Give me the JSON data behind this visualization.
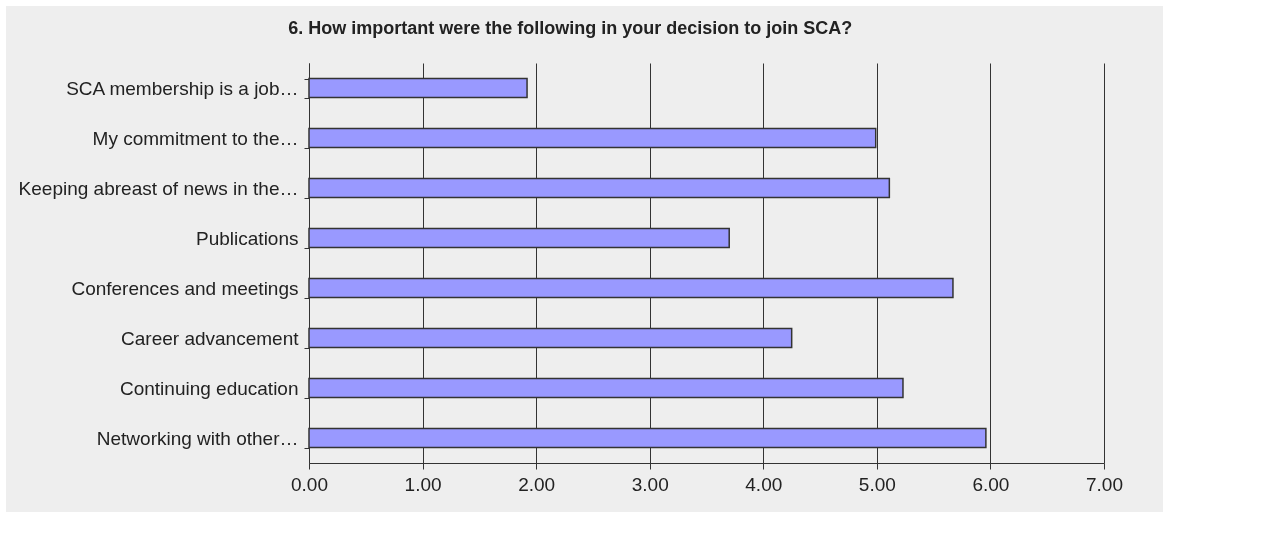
{
  "chart_data": {
    "type": "bar",
    "orientation": "horizontal",
    "title": "6. How important were the following in your decision to join SCA?",
    "categories": [
      "SCA membership is a job…",
      "My commitment to the…",
      "Keeping abreast of news in the…",
      "Publications",
      "Conferences and meetings",
      "Career advancement",
      "Continuing education",
      "Networking with other…"
    ],
    "values": [
      1.92,
      4.99,
      5.11,
      3.7,
      5.67,
      4.25,
      5.23,
      5.96
    ],
    "color": "#9999ff",
    "xlim": [
      0,
      7
    ],
    "xticks": [
      {
        "value": 0,
        "label": "0.00"
      },
      {
        "value": 1,
        "label": "1.00"
      },
      {
        "value": 2,
        "label": "2.00"
      },
      {
        "value": 3,
        "label": "3.00"
      },
      {
        "value": 4,
        "label": "4.00"
      },
      {
        "value": 5,
        "label": "5.00"
      },
      {
        "value": 6,
        "label": "6.00"
      },
      {
        "value": 7,
        "label": "7.00"
      }
    ],
    "grid": "x"
  }
}
